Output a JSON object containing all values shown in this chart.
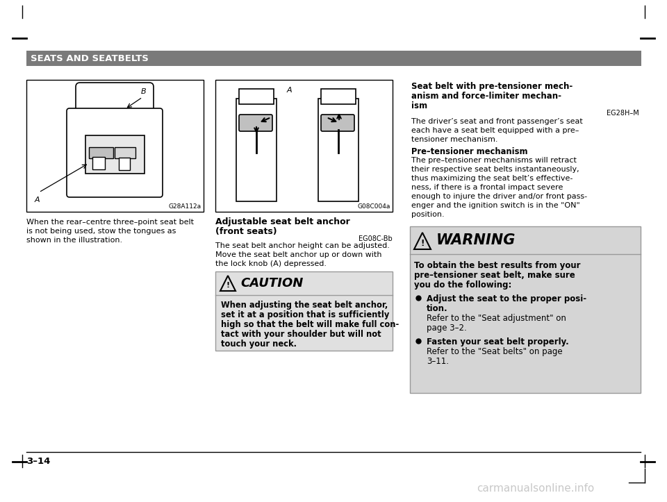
{
  "page_bg": "#ffffff",
  "header_bg": "#7a7a7a",
  "header_text": "SEATS AND SEATBELTS",
  "header_text_color": "#ffffff",
  "left_fig_ref": "G28A112a",
  "left_caption_line1": "When the rear–centre three–point seat belt",
  "left_caption_line2": "is not being used, stow the tongues as",
  "left_caption_line3": "shown in the illustration.",
  "right_fig_ref": "G08C004a",
  "mid_title_line1": "Adjustable seat belt anchor",
  "mid_title_line2": "(front seats)",
  "mid_code": "EG08C-Bb",
  "mid_body_line1": "The seat belt anchor height can be adjusted.",
  "mid_body_line2": "Move the seat belt anchor up or down with",
  "mid_body_line3": "the lock knob (A) depressed.",
  "caution_header": "CAUTION",
  "caution_line1": "When adjusting the seat belt anchor,",
  "caution_line2": "set it at a position that is sufficiently",
  "caution_line3": "high so that the belt will make full con-",
  "caution_line4": "tact with your shoulder but will not",
  "caution_line5": "touch your neck.",
  "caution_bg": "#e0e0e0",
  "rc_title_line1": "Seat belt with pre-tensioner mech-",
  "rc_title_line2": "anism and force-limiter mechan-",
  "rc_title_line3": "ism",
  "rc_code": "EG28H–M",
  "rc_body_line1": "The driver’s seat and front passenger’s seat",
  "rc_body_line2": "each have a seat belt equipped with a pre–",
  "rc_body_line3": "tensioner mechanism.",
  "rc_sub_title": "Pre–tensioner mechanism",
  "rc_sub_line1": "The pre–tensioner mechanisms will retract",
  "rc_sub_line2": "their respective seat belts instantaneously,",
  "rc_sub_line3": "thus maximizing the seat belt’s effective-",
  "rc_sub_line4": "ness, if there is a frontal impact severe",
  "rc_sub_line5": "enough to injure the driver and/or front pass-",
  "rc_sub_line6": "enger and the ignition switch is in the \"ON\"",
  "rc_sub_line7": "position.",
  "warn_header": "WARNING",
  "warn_intro1": "To obtain the best results from your",
  "warn_intro2": "pre–tensioner seat belt, make sure",
  "warn_intro3": "you do the following:",
  "warn_b1a": "Adjust the seat to the proper posi-",
  "warn_b1b": "tion.",
  "warn_b1c": "Refer to the \"Seat adjustment\" on",
  "warn_b1d": "page 3–2.",
  "warn_b2a": "Fasten your seat belt properly.",
  "warn_b2b": "Refer to the \"Seat belts\" on page",
  "warn_b2c": "3–11.",
  "warn_bg": "#d5d5d5",
  "page_num": "3–14",
  "watermark": "carmanualsonline.info"
}
